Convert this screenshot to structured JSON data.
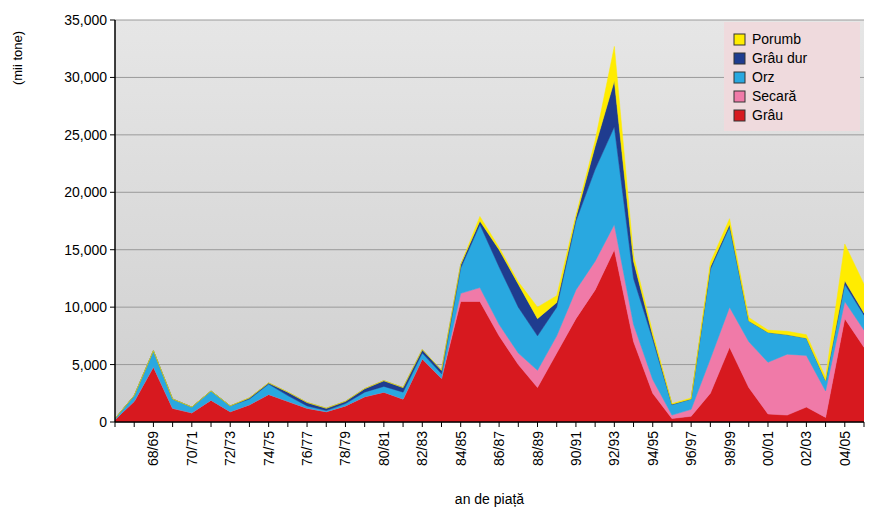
{
  "chart_data": {
    "type": "area",
    "stacked": true,
    "grid": true,
    "legend": "upper right",
    "x_label": "an de piață",
    "y_label": "(mii tone)",
    "categories": [
      null,
      null,
      "68/69",
      null,
      "70/71",
      null,
      "72/73",
      null,
      "74/75",
      null,
      "76/77",
      null,
      "78/79",
      null,
      "80/81",
      null,
      "82/83",
      null,
      "84/85",
      null,
      "86/87",
      null,
      "88/89",
      null,
      "90/91",
      null,
      "92/93",
      null,
      "94/95",
      null,
      "96/97",
      null,
      "98/99",
      null,
      "00/01",
      null,
      "02/03",
      null,
      "04/05",
      null
    ],
    "ylim": [
      0,
      35000
    ],
    "yticks": [
      0,
      {
        "value": 5000,
        "label": "5,000"
      },
      {
        "value": 10000,
        "label": "10,000"
      },
      {
        "value": 15000,
        "label": "15,000"
      },
      {
        "value": 20000,
        "label": "20,000"
      },
      {
        "value": 25000,
        "label": "25,000"
      },
      {
        "value": 30000,
        "label": "30,000"
      },
      {
        "value": 35000,
        "label": "35,000"
      }
    ],
    "series": [
      {
        "name": "Grâu",
        "color": "#d7191f",
        "values": [
          200,
          1800,
          4800,
          1200,
          800,
          1900,
          900,
          1500,
          2400,
          1800,
          1200,
          900,
          1400,
          2200,
          2600,
          2000,
          5500,
          3800,
          10500,
          10500,
          7500,
          5000,
          3000,
          6000,
          9000,
          11500,
          15000,
          7000,
          2500,
          300,
          500,
          2500,
          6500,
          3000,
          700,
          600,
          1300,
          400,
          9000,
          6500
        ]
      },
      {
        "name": "Secară",
        "color": "#f07aa8",
        "values": [
          0,
          0,
          0,
          0,
          0,
          0,
          0,
          0,
          0,
          0,
          0,
          0,
          0,
          0,
          0,
          0,
          0,
          0,
          700,
          1200,
          1000,
          1000,
          1500,
          1500,
          2500,
          2500,
          2200,
          1500,
          1200,
          300,
          600,
          3000,
          3500,
          4000,
          4500,
          5300,
          4500,
          2300,
          1500,
          1500
        ]
      },
      {
        "name": "Orz",
        "color": "#29a8e0",
        "values": [
          100,
          500,
          1400,
          800,
          500,
          800,
          500,
          500,
          900,
          500,
          200,
          100,
          200,
          400,
          500,
          600,
          500,
          400,
          2200,
          5500,
          5000,
          4000,
          3000,
          2500,
          6000,
          8000,
          8500,
          4000,
          3500,
          900,
          900,
          7800,
          7000,
          1800,
          2600,
          1700,
          1500,
          900,
          1500,
          1300
        ]
      },
      {
        "name": "Grâu dur",
        "color": "#1f3c8f",
        "values": [
          0,
          0,
          0,
          0,
          0,
          0,
          0,
          100,
          100,
          300,
          300,
          200,
          200,
          300,
          500,
          400,
          300,
          300,
          300,
          300,
          1500,
          2000,
          1500,
          400,
          300,
          2000,
          4000,
          1500,
          300,
          50,
          0,
          200,
          200,
          0,
          0,
          0,
          0,
          0,
          300,
          200
        ]
      },
      {
        "name": "Porumb",
        "color": "#ffec00",
        "values": [
          0,
          0,
          0,
          0,
          0,
          0,
          0,
          0,
          0,
          0,
          0,
          0,
          0,
          0,
          0,
          0,
          0,
          0,
          0,
          400,
          200,
          200,
          1000,
          600,
          200,
          500,
          3000,
          500,
          300,
          50,
          100,
          400,
          500,
          300,
          200,
          300,
          300,
          300,
          3200,
          2500
        ]
      }
    ]
  }
}
